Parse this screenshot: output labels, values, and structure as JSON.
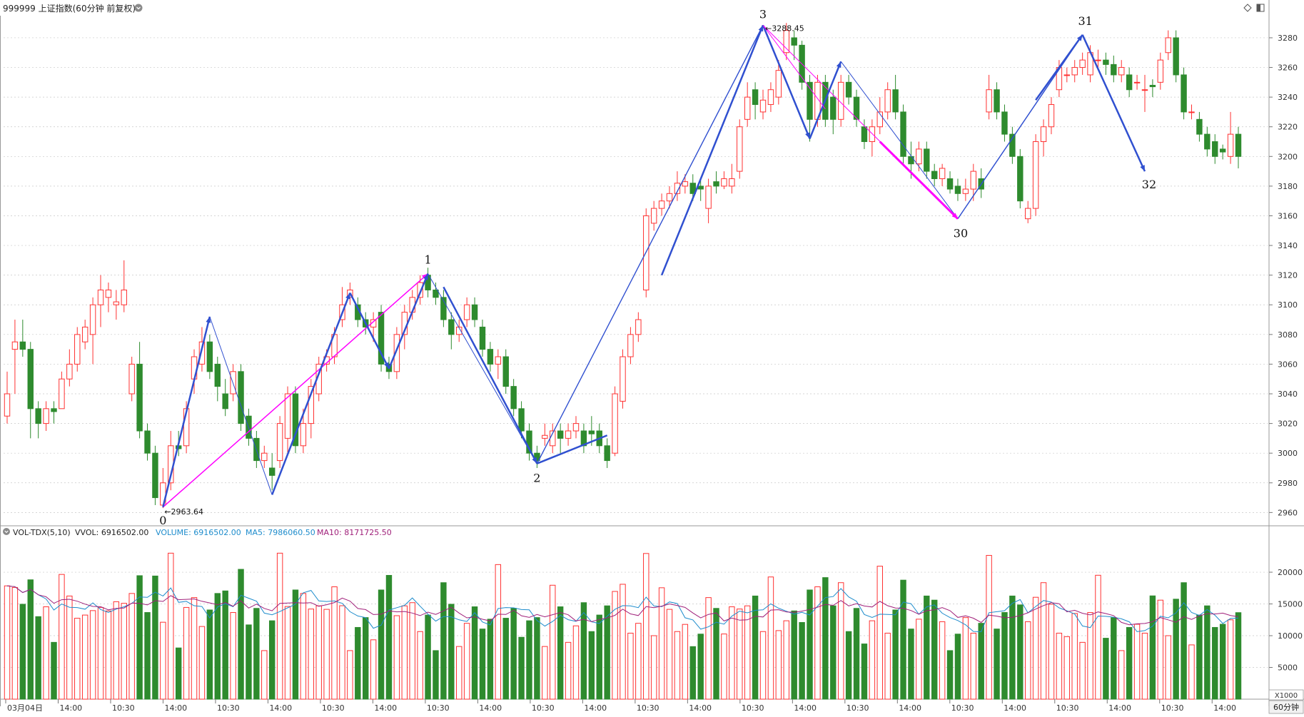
{
  "header": {
    "title": "999999 上证指数(60分钟 前复权)",
    "dropdown_icon": "circle-chevron-down-icon",
    "right_icons": [
      "diamond-icon",
      "panel-toggle-icon"
    ]
  },
  "colors": {
    "up": "#ff3232",
    "down": "#2e8b2e",
    "grid": "#c8c8c8",
    "zigzag": "#3050d0",
    "magenta": "#ff00ff",
    "ma5": "#1e8ccc",
    "ma10": "#a0207a",
    "axis_text": "#333333"
  },
  "chart_data": [
    {
      "type": "candlestick",
      "y_axis_ticks": [
        2960,
        2980,
        3000,
        3020,
        3040,
        3060,
        3080,
        3100,
        3120,
        3140,
        3160,
        3180,
        3200,
        3220,
        3240,
        3260,
        3280
      ],
      "ylim": [
        2952,
        3292
      ],
      "price_labels": {
        "low": "2963.64",
        "high": "3288.45"
      },
      "wave_labels": [
        "0",
        "1",
        "2",
        "3",
        "30",
        "31",
        "32"
      ],
      "candles": [
        [
          3025,
          3040,
          3020,
          3055
        ],
        [
          3070,
          3075,
          3040,
          3090
        ],
        [
          3075,
          3070,
          3065,
          3090
        ],
        [
          3070,
          3030,
          3010,
          3075
        ],
        [
          3030,
          3020,
          3010,
          3035
        ],
        [
          3020,
          3030,
          3015,
          3035
        ],
        [
          3030,
          3028,
          3020,
          3035
        ],
        [
          3030,
          3050,
          3030,
          3055
        ],
        [
          3050,
          3060,
          3045,
          3070
        ],
        [
          3060,
          3080,
          3055,
          3085
        ],
        [
          3075,
          3085,
          3070,
          3090
        ],
        [
          3080,
          3100,
          3060,
          3105
        ],
        [
          3100,
          3110,
          3085,
          3120
        ],
        [
          3105,
          3110,
          3095,
          3115
        ],
        [
          3100,
          3102,
          3090,
          3110
        ],
        [
          3100,
          3110,
          3095,
          3130
        ],
        [
          3040,
          3060,
          3035,
          3065
        ],
        [
          3060,
          3015,
          3010,
          3075
        ],
        [
          3015,
          3000,
          2995,
          3020
        ],
        [
          3000,
          2970,
          2965,
          3005
        ],
        [
          2965,
          2980,
          2963,
          2990
        ],
        [
          2980,
          3005,
          2975,
          3015
        ],
        [
          3005,
          3003,
          2998,
          3015
        ],
        [
          3005,
          3030,
          3000,
          3035
        ],
        [
          3050,
          3065,
          3040,
          3070
        ],
        [
          3060,
          3075,
          3055,
          3085
        ],
        [
          3075,
          3055,
          3050,
          3080
        ],
        [
          3060,
          3045,
          3035,
          3065
        ],
        [
          3040,
          3030,
          3025,
          3050
        ],
        [
          3040,
          3055,
          3035,
          3060
        ],
        [
          3055,
          3020,
          3015,
          3060
        ],
        [
          3025,
          3010,
          3005,
          3030
        ],
        [
          3010,
          2995,
          2990,
          3015
        ],
        [
          2995,
          3000,
          2990,
          3005
        ],
        [
          2990,
          2985,
          2975,
          3000
        ],
        [
          2995,
          3020,
          2990,
          3025
        ],
        [
          3010,
          3040,
          3000,
          3045
        ],
        [
          3040,
          3005,
          3000,
          3045
        ],
        [
          3005,
          3020,
          3000,
          3030
        ],
        [
          3020,
          3045,
          3010,
          3050
        ],
        [
          3040,
          3060,
          3035,
          3065
        ],
        [
          3060,
          3065,
          3055,
          3070
        ],
        [
          3065,
          3080,
          3060,
          3085
        ],
        [
          3090,
          3100,
          3085,
          3112
        ],
        [
          3105,
          3110,
          3100,
          3115
        ],
        [
          3100,
          3090,
          3085,
          3105
        ],
        [
          3090,
          3085,
          3080,
          3095
        ],
        [
          3085,
          3090,
          3075,
          3095
        ],
        [
          3095,
          3060,
          3055,
          3100
        ],
        [
          3060,
          3055,
          3050,
          3065
        ],
        [
          3055,
          3080,
          3050,
          3085
        ],
        [
          3080,
          3095,
          3070,
          3100
        ],
        [
          3095,
          3105,
          3090,
          3110
        ],
        [
          3105,
          3115,
          3100,
          3120
        ],
        [
          3120,
          3110,
          3105,
          3125
        ],
        [
          3110,
          3105,
          3100,
          3115
        ],
        [
          3105,
          3090,
          3085,
          3110
        ],
        [
          3090,
          3080,
          3070,
          3095
        ],
        [
          3080,
          3085,
          3075,
          3090
        ],
        [
          3090,
          3100,
          3085,
          3105
        ],
        [
          3100,
          3090,
          3085,
          3105
        ],
        [
          3085,
          3070,
          3065,
          3090
        ],
        [
          3070,
          3060,
          3055,
          3075
        ],
        [
          3060,
          3065,
          3050,
          3070
        ],
        [
          3065,
          3045,
          3040,
          3070
        ],
        [
          3045,
          3030,
          3025,
          3050
        ],
        [
          3030,
          3015,
          3010,
          3035
        ],
        [
          3015,
          3000,
          2995,
          3020
        ],
        [
          3000,
          2995,
          2990,
          3005
        ],
        [
          3010,
          3012,
          3005,
          3020
        ],
        [
          3005,
          3015,
          3000,
          3020
        ],
        [
          3015,
          3010,
          3000,
          3020
        ],
        [
          3010,
          3015,
          3005,
          3020
        ],
        [
          3015,
          3020,
          3010,
          3025
        ],
        [
          3015,
          3005,
          3000,
          3020
        ],
        [
          3015,
          3013,
          3005,
          3025
        ],
        [
          3015,
          3005,
          3000,
          3020
        ],
        [
          3005,
          2995,
          2990,
          3010
        ],
        [
          3000,
          3040,
          2998,
          3045
        ],
        [
          3035,
          3065,
          3030,
          3070
        ],
        [
          3065,
          3080,
          3060,
          3085
        ],
        [
          3080,
          3090,
          3075,
          3095
        ],
        [
          3110,
          3160,
          3105,
          3165
        ],
        [
          3155,
          3165,
          3150,
          3170
        ],
        [
          3165,
          3170,
          3160,
          3175
        ],
        [
          3170,
          3175,
          3165,
          3180
        ],
        [
          3175,
          3182,
          3170,
          3190
        ],
        [
          3180,
          3183,
          3175,
          3188
        ],
        [
          3182,
          3175,
          3170,
          3188
        ],
        [
          3180,
          3178,
          3170,
          3185
        ],
        [
          3165,
          3180,
          3155,
          3185
        ],
        [
          3183,
          3180,
          3175,
          3190
        ],
        [
          3180,
          3185,
          3178,
          3190
        ],
        [
          3180,
          3185,
          3175,
          3195
        ],
        [
          3190,
          3220,
          3185,
          3225
        ],
        [
          3225,
          3240,
          3220,
          3250
        ],
        [
          3245,
          3235,
          3225,
          3250
        ],
        [
          3230,
          3238,
          3225,
          3245
        ],
        [
          3235,
          3245,
          3230,
          3250
        ],
        [
          3240,
          3258,
          3235,
          3265
        ],
        [
          3270,
          3285,
          3265,
          3290
        ],
        [
          3280,
          3275,
          3265,
          3285
        ],
        [
          3275,
          3250,
          3245,
          3278
        ],
        [
          3250,
          3225,
          3210,
          3255
        ],
        [
          3225,
          3250,
          3220,
          3255
        ],
        [
          3250,
          3225,
          3220,
          3255
        ],
        [
          3240,
          3225,
          3215,
          3245
        ],
        [
          3225,
          3250,
          3220,
          3255
        ],
        [
          3250,
          3240,
          3235,
          3255
        ],
        [
          3240,
          3225,
          3220,
          3245
        ],
        [
          3220,
          3210,
          3205,
          3225
        ],
        [
          3210,
          3220,
          3200,
          3225
        ],
        [
          3220,
          3230,
          3215,
          3240
        ],
        [
          3230,
          3245,
          3225,
          3250
        ],
        [
          3245,
          3230,
          3225,
          3255
        ],
        [
          3230,
          3200,
          3195,
          3235
        ],
        [
          3200,
          3195,
          3185,
          3210
        ],
        [
          3195,
          3205,
          3190,
          3210
        ],
        [
          3205,
          3190,
          3185,
          3210
        ],
        [
          3190,
          3185,
          3180,
          3195
        ],
        [
          3185,
          3192,
          3180,
          3195
        ],
        [
          3185,
          3178,
          3175,
          3190
        ],
        [
          3180,
          3175,
          3170,
          3185
        ],
        [
          3175,
          3178,
          3170,
          3185
        ],
        [
          3178,
          3190,
          3170,
          3195
        ],
        [
          3185,
          3178,
          3172,
          3192
        ],
        [
          3230,
          3245,
          3225,
          3255
        ],
        [
          3245,
          3230,
          3225,
          3250
        ],
        [
          3230,
          3215,
          3210,
          3235
        ],
        [
          3215,
          3200,
          3195,
          3220
        ],
        [
          3200,
          3170,
          3165,
          3205
        ],
        [
          3158,
          3165,
          3155,
          3170
        ],
        [
          3165,
          3210,
          3160,
          3215
        ],
        [
          3210,
          3220,
          3200,
          3225
        ],
        [
          3220,
          3235,
          3215,
          3240
        ],
        [
          3245,
          3260,
          3240,
          3265
        ],
        [
          3255,
          3255,
          3250,
          3260
        ],
        [
          3255,
          3260,
          3250,
          3265
        ],
        [
          3260,
          3265,
          3255,
          3270
        ],
        [
          3255,
          3270,
          3250,
          3275
        ],
        [
          3265,
          3265,
          3260,
          3272
        ],
        [
          3265,
          3262,
          3255,
          3270
        ],
        [
          3262,
          3255,
          3250,
          3268
        ],
        [
          3255,
          3260,
          3250,
          3265
        ],
        [
          3255,
          3245,
          3240,
          3260
        ],
        [
          3250,
          3250,
          3245,
          3255
        ],
        [
          3245,
          3245,
          3230,
          3255
        ],
        [
          3248,
          3247,
          3240,
          3252
        ],
        [
          3250,
          3265,
          3245,
          3270
        ],
        [
          3270,
          3280,
          3265,
          3285
        ],
        [
          3280,
          3255,
          3250,
          3285
        ],
        [
          3255,
          3230,
          3225,
          3260
        ],
        [
          3230,
          3230,
          3225,
          3235
        ],
        [
          3225,
          3215,
          3210,
          3230
        ],
        [
          3215,
          3205,
          3200,
          3220
        ],
        [
          3210,
          3200,
          3195,
          3215
        ],
        [
          3205,
          3203,
          3198,
          3208
        ],
        [
          3200,
          3215,
          3195,
          3230
        ],
        [
          3215,
          3200,
          3192,
          3220
        ]
      ]
    },
    {
      "type": "bar",
      "title": "VOL-TDX(5,10)",
      "legend": {
        "vvol": "VVOL: 6916502.00",
        "volume": "VOLUME: 6916502.00",
        "ma5": "MA5: 7986060.50",
        "ma10": "MA10: 8171725.50"
      },
      "y_axis_ticks": [
        5000,
        10000,
        15000,
        20000
      ],
      "ylim": [
        0,
        24500
      ],
      "unit_label": "X1000",
      "x_axis_labels": [
        "03月04日",
        "14:00",
        "10:30",
        "14:00",
        "10:30",
        "14:00",
        "10:30",
        "14:00",
        "10:30",
        "14:00",
        "10:30",
        "14:00",
        "10:30",
        "14:00",
        "10:30",
        "14:00",
        "10:30",
        "14:00",
        "10:30",
        "14:00",
        "10:30",
        "14:00",
        "10:30",
        "14:00"
      ],
      "period_label": "60分钟"
    }
  ]
}
